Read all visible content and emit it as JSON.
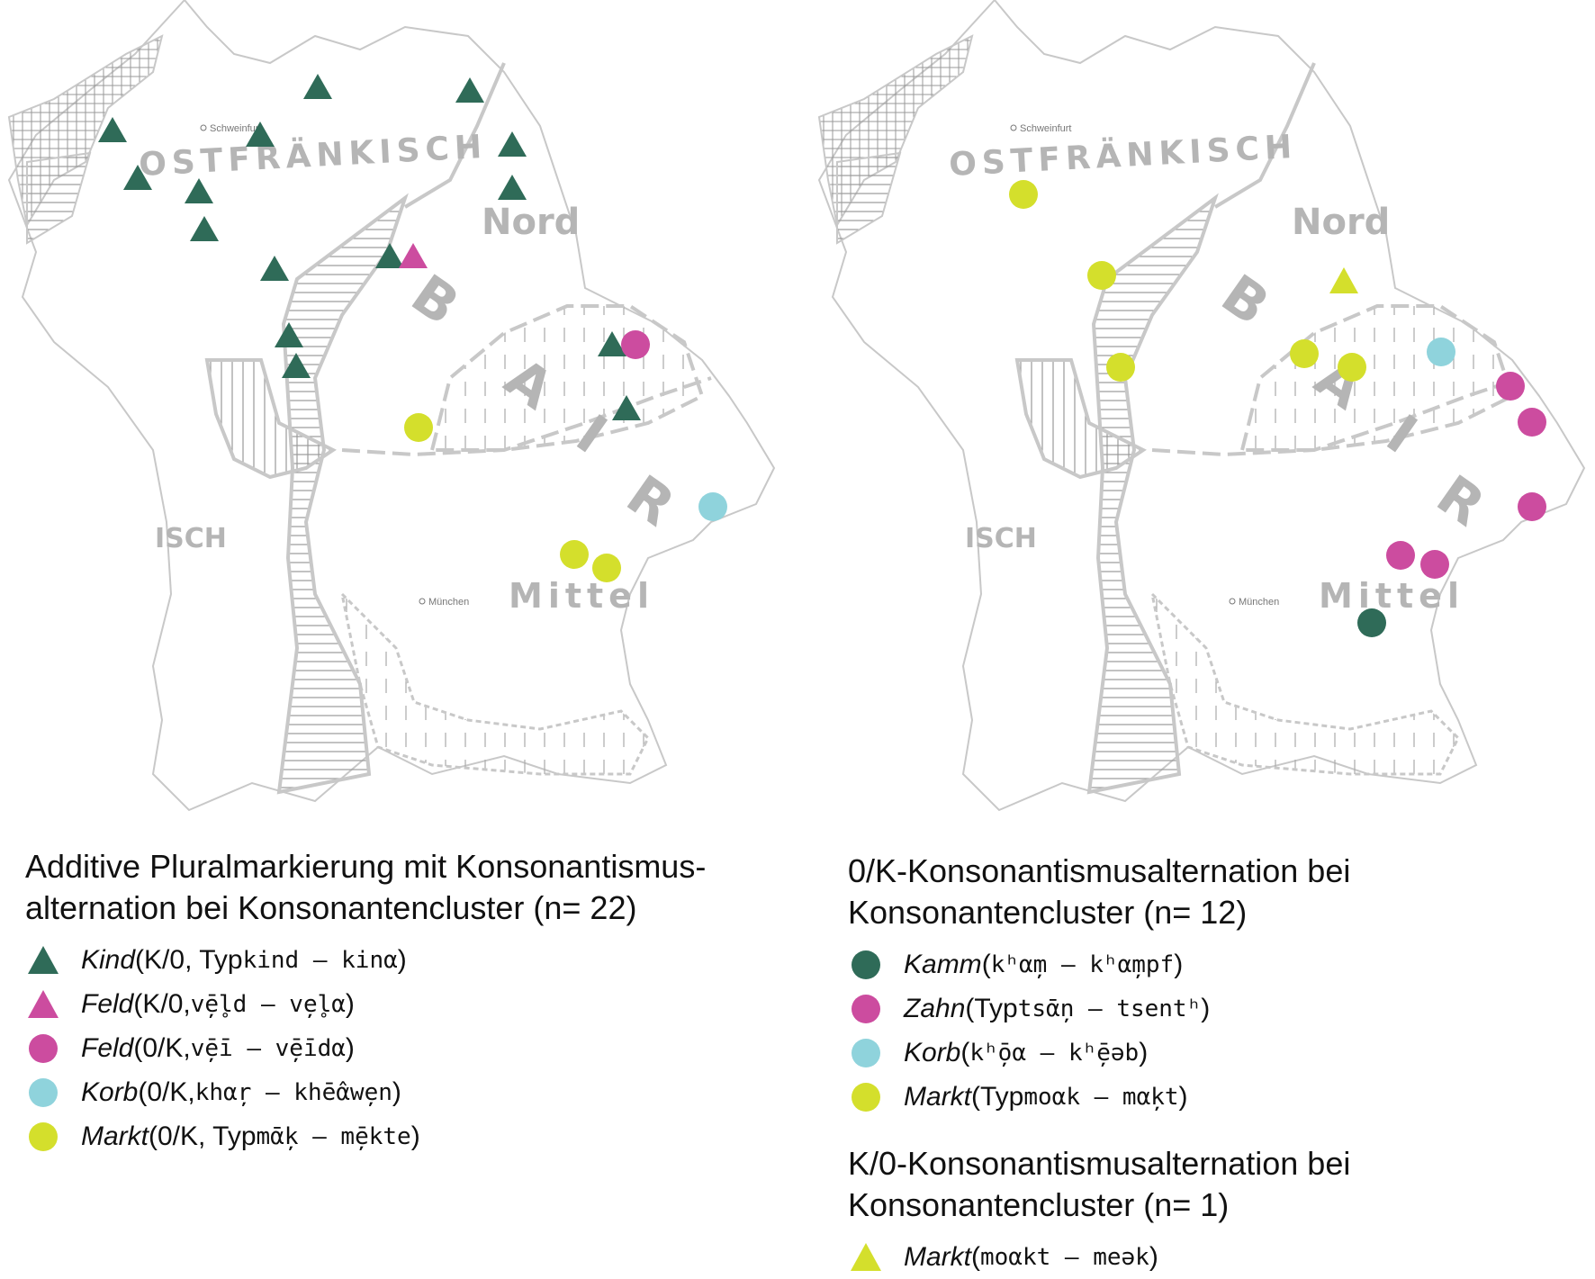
{
  "colors": {
    "dark_green": "#2f6b58",
    "magenta": "#cc4c9f",
    "light_blue": "#8fd3dc",
    "yellow": "#d4df2c",
    "map_line": "#c8c8c8",
    "map_label": "#b5b5b5"
  },
  "map_labels": {
    "ostfraenkisch": "OSTFRÄNKISCH",
    "nord": "Nord",
    "bairisch_b": "B",
    "bairisch_a": "A",
    "bairisch_i": "I",
    "bairisch_r": "R",
    "mittel": "Mittel",
    "schwaebisch_fragment": "ISCH",
    "city_schweinfurt": "Schweinfurt",
    "city_muenchen": "München"
  },
  "left_legend": {
    "title": "Additive Pluralmarkierung mit Konsonantismus-alternation bei Konsonantencluster (n= 22)",
    "items": [
      {
        "symbol": "triangle",
        "color": "#2f6b58",
        "word": "Kind",
        "open": " (K/0, Typ ",
        "phon": "kind – kinα",
        "close": ")"
      },
      {
        "symbol": "triangle",
        "color": "#cc4c9f",
        "word": "Feld",
        "open": " (K/0, ",
        "phon": "vē̦l̥d – ve̦l̥α",
        "close": ")"
      },
      {
        "symbol": "circle",
        "color": "#cc4c9f",
        "word": "Feld",
        "open": " (0/K, ",
        "phon": "vē̦ī – vē̦īdα",
        "close": ")"
      },
      {
        "symbol": "circle",
        "color": "#8fd3dc",
        "word": "Korb",
        "open": " (0/K, ",
        "phon": "khα̦r – khē̂αwe̦n",
        "close": ")"
      },
      {
        "symbol": "circle",
        "color": "#d4df2c",
        "word": "Markt",
        "open": " (0/K, Typ ",
        "phon": "mᾱ̦k – mē̦kte",
        "close": ")"
      }
    ]
  },
  "right_legend": {
    "title": "0/K-Konsonantismusalternation bei Konsonantencluster (n= 12)",
    "items": [
      {
        "symbol": "circle",
        "color": "#2f6b58",
        "word": "Kamm",
        "open": " (",
        "phon": "kʰα̦m – kʰα̦mpf",
        "close": ")"
      },
      {
        "symbol": "circle",
        "color": "#cc4c9f",
        "word": "Zahn",
        "open": " (Typ ",
        "phon": "tsᾱ̦n – tsentʰ",
        "close": ")"
      },
      {
        "symbol": "circle",
        "color": "#8fd3dc",
        "word": "Korb",
        "open": " (",
        "phon": "kʰō̦α – kʰē̦əb",
        "close": ")"
      },
      {
        "symbol": "circle",
        "color": "#d4df2c",
        "word": "Markt",
        "open": " (Typ ",
        "phon": "moαk – mα̦kt",
        "close": ")"
      }
    ]
  },
  "right_legend_2": {
    "title": "K/0-Konsonantismusalternation bei Konsonantencluster (n= 1)",
    "items": [
      {
        "symbol": "triangle",
        "color": "#d4df2c",
        "word": "Markt",
        "open": " (",
        "phon": "moαkt – meək",
        "close": ")"
      }
    ]
  }
}
